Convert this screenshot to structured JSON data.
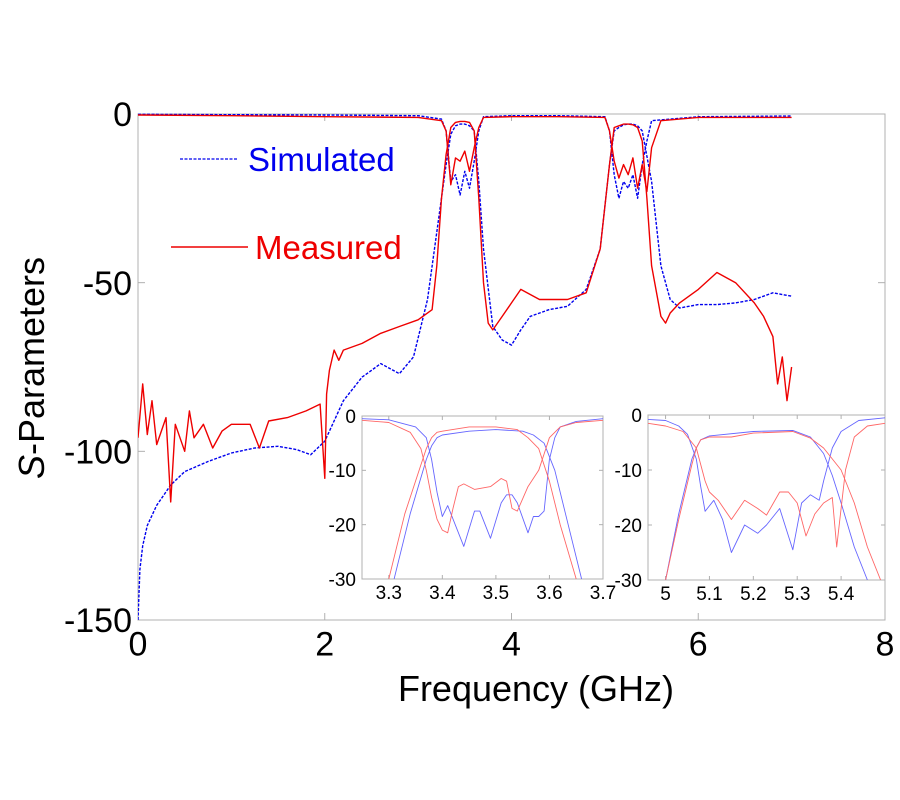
{
  "chart_data": [
    {
      "id": "main",
      "type": "line",
      "title": "",
      "xlabel": "Frequency (GHz)",
      "ylabel": "S-Parameters",
      "ylabel_italic_prefix": "S",
      "ylabel_rest": "-Parameters",
      "xlim": [
        0,
        8
      ],
      "ylim": [
        -150,
        0
      ],
      "xticks": [
        0,
        2,
        4,
        6,
        8
      ],
      "xtick_labels": [
        "0",
        "2",
        "4",
        "6",
        "8"
      ],
      "yticks": [
        0,
        -50,
        -100,
        -150
      ],
      "ytick_labels": [
        "0",
        "-50",
        "-100",
        "-150"
      ],
      "grid": false,
      "legend": {
        "position": "top-left",
        "entries": [
          {
            "label": "Simulated",
            "color": "#0000ee",
            "style": "dashed"
          },
          {
            "label": "Measured",
            "color": "#ee0000",
            "style": "solid"
          }
        ]
      },
      "series": [
        {
          "name": "Simulated S21",
          "color": "#0000ee",
          "style": "dashed",
          "x": [
            0.0,
            0.02,
            0.05,
            0.1,
            0.2,
            0.35,
            0.5,
            0.75,
            1.0,
            1.25,
            1.5,
            1.7,
            1.85,
            2.0,
            2.2,
            2.4,
            2.6,
            2.8,
            2.95,
            3.1,
            3.2,
            3.3,
            3.35,
            3.4,
            3.45,
            3.5,
            3.55,
            3.6,
            3.65,
            3.7,
            3.8,
            3.9,
            4.0,
            4.1,
            4.2,
            4.4,
            4.6,
            4.8,
            4.95,
            5.05,
            5.1,
            5.15,
            5.2,
            5.25,
            5.3,
            5.35,
            5.4,
            5.5,
            5.6,
            5.7,
            5.8,
            6.0,
            6.2,
            6.4,
            6.6,
            6.8,
            7.0
          ],
          "y": [
            -150,
            -135,
            -128,
            -122,
            -116,
            -110,
            -106,
            -103,
            -100.5,
            -99,
            -98.5,
            -99.5,
            -101,
            -97,
            -85,
            -78,
            -74,
            -77,
            -72,
            -55,
            -35,
            -15,
            -6,
            -3.5,
            -3,
            -3,
            -3.5,
            -5,
            -20,
            -40,
            -63,
            -67,
            -68.5,
            -64,
            -60,
            -58,
            -57,
            -52,
            -40,
            -15,
            -5,
            -4,
            -3.2,
            -3,
            -3,
            -3.5,
            -5,
            -20,
            -45,
            -55,
            -57.5,
            -56.5,
            -56.5,
            -56,
            -55,
            -53,
            -54
          ]
        },
        {
          "name": "Simulated S11",
          "color": "#0000ee",
          "style": "dashed",
          "x": [
            0.0,
            1.0,
            2.0,
            3.0,
            3.25,
            3.3,
            3.35,
            3.4,
            3.45,
            3.5,
            3.55,
            3.6,
            3.65,
            3.7,
            4.0,
            4.5,
            5.0,
            5.05,
            5.1,
            5.15,
            5.2,
            5.25,
            5.3,
            5.35,
            5.4,
            5.45,
            5.5,
            6.0,
            7.0
          ],
          "y": [
            -0.1,
            -0.2,
            -0.3,
            -0.5,
            -1.5,
            -5,
            -20,
            -18,
            -24,
            -17,
            -22,
            -14,
            -5,
            -0.8,
            -0.5,
            -0.5,
            -0.8,
            -5,
            -18,
            -25,
            -20,
            -22,
            -18,
            -25,
            -15,
            -8,
            -2,
            -0.8,
            -0.6
          ]
        },
        {
          "name": "Measured S21",
          "color": "#ee0000",
          "style": "solid",
          "x": [
            0.0,
            0.05,
            0.1,
            0.15,
            0.2,
            0.3,
            0.35,
            0.4,
            0.5,
            0.55,
            0.6,
            0.7,
            0.8,
            0.9,
            1.0,
            1.2,
            1.3,
            1.4,
            1.6,
            1.8,
            1.95,
            2.0,
            2.02,
            2.05,
            2.1,
            2.15,
            2.2,
            2.4,
            2.6,
            2.8,
            3.0,
            3.15,
            3.2,
            3.25,
            3.3,
            3.35,
            3.4,
            3.45,
            3.5,
            3.55,
            3.6,
            3.65,
            3.7,
            3.75,
            3.8,
            3.9,
            4.0,
            4.1,
            4.3,
            4.6,
            4.8,
            4.95,
            5.05,
            5.1,
            5.15,
            5.2,
            5.25,
            5.3,
            5.35,
            5.4,
            5.45,
            5.5,
            5.6,
            5.65,
            5.7,
            5.8,
            6.0,
            6.2,
            6.4,
            6.6,
            6.7,
            6.8,
            6.85,
            6.9,
            6.95,
            7.0
          ],
          "y": [
            -96,
            -80,
            -95,
            -85,
            -98,
            -90,
            -115,
            -92,
            -100,
            -88,
            -96,
            -92,
            -99,
            -94,
            -92,
            -92,
            -99,
            -91,
            -90,
            -88,
            -86,
            -108,
            -83,
            -76,
            -70,
            -73,
            -70,
            -68,
            -65,
            -63,
            -61,
            -58,
            -45,
            -25,
            -12,
            -4,
            -2.5,
            -2.2,
            -2.2,
            -2.5,
            -5,
            -25,
            -50,
            -62,
            -64,
            -60,
            -56,
            -52,
            -55,
            -55,
            -53,
            -40,
            -15,
            -4,
            -3.5,
            -3,
            -3,
            -3.2,
            -4,
            -8,
            -25,
            -45,
            -60,
            -62,
            -59,
            -56,
            -52,
            -47,
            -50,
            -56,
            -60,
            -66,
            -80,
            -72,
            -85,
            -75
          ]
        },
        {
          "name": "Measured S11",
          "color": "#ee0000",
          "style": "solid",
          "x": [
            0.0,
            1.0,
            2.0,
            3.0,
            3.25,
            3.3,
            3.35,
            3.4,
            3.45,
            3.5,
            3.55,
            3.6,
            3.65,
            3.7,
            4.0,
            4.5,
            5.0,
            5.05,
            5.1,
            5.15,
            5.2,
            5.25,
            5.3,
            5.35,
            5.4,
            5.45,
            5.5,
            5.6,
            6.0,
            7.0
          ],
          "y": [
            -0.3,
            -0.5,
            -0.8,
            -1.0,
            -2,
            -5,
            -21,
            -13,
            -14,
            -11,
            -17,
            -10,
            -4,
            -1,
            -0.8,
            -0.8,
            -1,
            -5,
            -14,
            -19,
            -15,
            -18,
            -13,
            -22,
            -15,
            -23,
            -10,
            -2,
            -1,
            -1
          ]
        }
      ]
    },
    {
      "id": "inset-1",
      "type": "line",
      "title": "",
      "xlabel": "",
      "ylabel": "",
      "xlim": [
        3.25,
        3.7
      ],
      "ylim": [
        -30,
        0
      ],
      "xticks": [
        3.3,
        3.4,
        3.5,
        3.6,
        3.7
      ],
      "xtick_labels": [
        "3.3",
        "3.4",
        "3.5",
        "3.6",
        "3.7"
      ],
      "yticks": [
        0,
        -10,
        -20,
        -30
      ],
      "ytick_labels": [
        "0",
        "-10",
        "-20",
        "-30"
      ],
      "grid": false,
      "series": [
        {
          "name": "Simulated S21",
          "color": "#6666ff",
          "x": [
            3.31,
            3.34,
            3.37,
            3.38,
            3.39,
            3.4,
            3.45,
            3.5,
            3.55,
            3.57,
            3.59,
            3.61,
            3.63,
            3.66
          ],
          "y": [
            -30,
            -18,
            -8,
            -5.5,
            -4,
            -3.5,
            -2.8,
            -2.5,
            -2.8,
            -3.5,
            -5,
            -10,
            -18,
            -30
          ]
        },
        {
          "name": "Simulated S11",
          "color": "#6666ff",
          "x": [
            3.25,
            3.3,
            3.35,
            3.37,
            3.38,
            3.39,
            3.4,
            3.41,
            3.44,
            3.46,
            3.47,
            3.49,
            3.51,
            3.52,
            3.53,
            3.54,
            3.56,
            3.57,
            3.58,
            3.59,
            3.6,
            3.61,
            3.62,
            3.65,
            3.7
          ],
          "y": [
            -0.5,
            -0.7,
            -2,
            -4,
            -8,
            -14,
            -18.5,
            -16.5,
            -24,
            -17.5,
            -17.5,
            -22.5,
            -16,
            -14.5,
            -14.5,
            -16,
            -21.5,
            -18.5,
            -18.5,
            -17.5,
            -8,
            -4,
            -2,
            -1,
            -0.5
          ]
        },
        {
          "name": "Measured S21",
          "color": "#ff6666",
          "x": [
            3.3,
            3.33,
            3.36,
            3.37,
            3.38,
            3.39,
            3.4,
            3.45,
            3.5,
            3.54,
            3.56,
            3.58,
            3.6,
            3.62,
            3.65
          ],
          "y": [
            -30,
            -18,
            -9,
            -6,
            -4,
            -3,
            -2.8,
            -2,
            -2,
            -2.5,
            -4,
            -6,
            -12,
            -20,
            -30
          ]
        },
        {
          "name": "Measured S11",
          "color": "#ff6666",
          "x": [
            3.25,
            3.3,
            3.34,
            3.36,
            3.37,
            3.38,
            3.39,
            3.4,
            3.41,
            3.42,
            3.43,
            3.44,
            3.46,
            3.49,
            3.51,
            3.52,
            3.53,
            3.54,
            3.56,
            3.58,
            3.59,
            3.6,
            3.62,
            3.65,
            3.7
          ],
          "y": [
            -0.8,
            -1.2,
            -3,
            -6,
            -10,
            -15,
            -19,
            -21,
            -21.5,
            -17,
            -13,
            -12.5,
            -13.5,
            -13,
            -11.5,
            -12,
            -17,
            -17.5,
            -13,
            -10,
            -7,
            -4,
            -2,
            -1.2,
            -0.8
          ]
        }
      ]
    },
    {
      "id": "inset-2",
      "type": "line",
      "title": "",
      "xlabel": "",
      "ylabel": "",
      "xlim": [
        4.96,
        5.5
      ],
      "ylim": [
        -30,
        0
      ],
      "xticks": [
        5.0,
        5.1,
        5.2,
        5.3,
        5.4
      ],
      "xtick_labels": [
        "5",
        "5.1",
        "5.2",
        "5.3",
        "5.4"
      ],
      "yticks": [
        0,
        -10,
        -20,
        -30
      ],
      "ytick_labels": [
        "0",
        "-10",
        "-20",
        "-30"
      ],
      "grid": false,
      "series": [
        {
          "name": "Simulated S21",
          "color": "#6666ff",
          "x": [
            5.0,
            5.03,
            5.06,
            5.07,
            5.08,
            5.1,
            5.2,
            5.29,
            5.33,
            5.36,
            5.38,
            5.4,
            5.43,
            5.46
          ],
          "y": [
            -30,
            -18,
            -8,
            -6,
            -4.5,
            -3.8,
            -3,
            -2.8,
            -4,
            -7,
            -11,
            -16,
            -24,
            -30
          ]
        },
        {
          "name": "Simulated S11",
          "color": "#6666ff",
          "x": [
            4.96,
            5.0,
            5.03,
            5.05,
            5.07,
            5.08,
            5.09,
            5.11,
            5.13,
            5.15,
            5.18,
            5.21,
            5.23,
            5.26,
            5.29,
            5.31,
            5.33,
            5.35,
            5.36,
            5.38,
            5.4,
            5.44,
            5.5
          ],
          "y": [
            -0.8,
            -1,
            -2,
            -3.5,
            -8,
            -13,
            -17.5,
            -15.5,
            -19,
            -25,
            -20,
            -21.5,
            -20,
            -17,
            -24.5,
            -16,
            -14.5,
            -15.5,
            -12,
            -6,
            -3,
            -1,
            -0.5
          ]
        },
        {
          "name": "Measured S21",
          "color": "#ff6666",
          "x": [
            5.0,
            5.03,
            5.06,
            5.07,
            5.08,
            5.1,
            5.15,
            5.2,
            5.29,
            5.33,
            5.36,
            5.4,
            5.43,
            5.46,
            5.49
          ],
          "y": [
            -30,
            -19,
            -9,
            -6,
            -4.5,
            -4,
            -4,
            -3.3,
            -3,
            -4.2,
            -6,
            -10,
            -16,
            -24,
            -30
          ]
        },
        {
          "name": "Measured S11",
          "color": "#ff6666",
          "x": [
            4.96,
            5.0,
            5.04,
            5.07,
            5.09,
            5.1,
            5.12,
            5.15,
            5.18,
            5.21,
            5.23,
            5.26,
            5.28,
            5.3,
            5.32,
            5.34,
            5.36,
            5.38,
            5.39,
            5.41,
            5.43,
            5.46,
            5.5
          ],
          "y": [
            -1.5,
            -2,
            -3,
            -6,
            -12,
            -14,
            -15.5,
            -19,
            -15.5,
            -17,
            -18.2,
            -14,
            -14,
            -16,
            -22,
            -18,
            -16,
            -15,
            -24,
            -10,
            -4,
            -2,
            -1.5
          ]
        }
      ]
    }
  ]
}
